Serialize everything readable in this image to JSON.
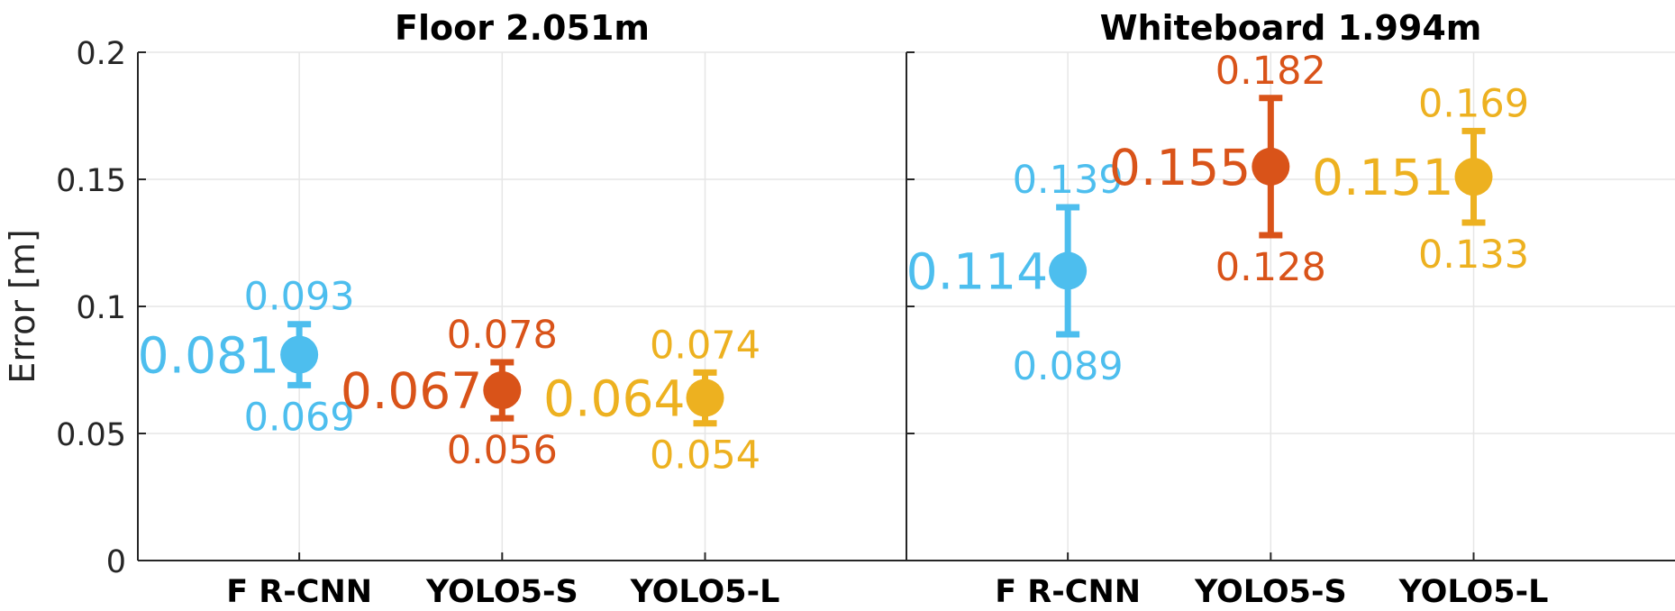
{
  "chart_data": [
    {
      "type": "scatter",
      "title": "Floor 2.051m",
      "ylabel": "Error [m]",
      "ylim": [
        0,
        0.2
      ],
      "yticks": [
        "0",
        "0.05",
        "0.1",
        "0.15",
        "0.2"
      ],
      "grid": true,
      "categories": [
        "F R-CNN",
        "YOLO5-S",
        "YOLO5-L"
      ],
      "points": [
        {
          "category": "F R-CNN",
          "mean": 0.081,
          "upper": 0.093,
          "lower": 0.069,
          "mean_label": "0.081",
          "upper_label": "0.093",
          "lower_label": "0.069",
          "color": "#4DBEEE"
        },
        {
          "category": "YOLO5-S",
          "mean": 0.067,
          "upper": 0.078,
          "lower": 0.056,
          "mean_label": "0.067",
          "upper_label": "0.078",
          "lower_label": "0.056",
          "color": "#D95319"
        },
        {
          "category": "YOLO5-L",
          "mean": 0.064,
          "upper": 0.074,
          "lower": 0.054,
          "mean_label": "0.064",
          "upper_label": "0.074",
          "lower_label": "0.054",
          "color": "#EDB120"
        }
      ]
    },
    {
      "type": "scatter",
      "title": "Whiteboard 1.994m",
      "ylim": [
        0,
        0.2
      ],
      "grid": true,
      "categories": [
        "F R-CNN",
        "YOLO5-S",
        "YOLO5-L"
      ],
      "points": [
        {
          "category": "F R-CNN",
          "mean": 0.114,
          "upper": 0.139,
          "lower": 0.089,
          "mean_label": "0.114",
          "upper_label": "0.139",
          "lower_label": "0.089",
          "color": "#4DBEEE"
        },
        {
          "category": "YOLO5-S",
          "mean": 0.155,
          "upper": 0.182,
          "lower": 0.128,
          "mean_label": "0.155",
          "upper_label": "0.182",
          "lower_label": "0.128",
          "color": "#D95319"
        },
        {
          "category": "YOLO5-L",
          "mean": 0.151,
          "upper": 0.169,
          "lower": 0.133,
          "mean_label": "0.151",
          "upper_label": "0.169",
          "lower_label": "0.133",
          "color": "#EDB120"
        }
      ]
    }
  ]
}
